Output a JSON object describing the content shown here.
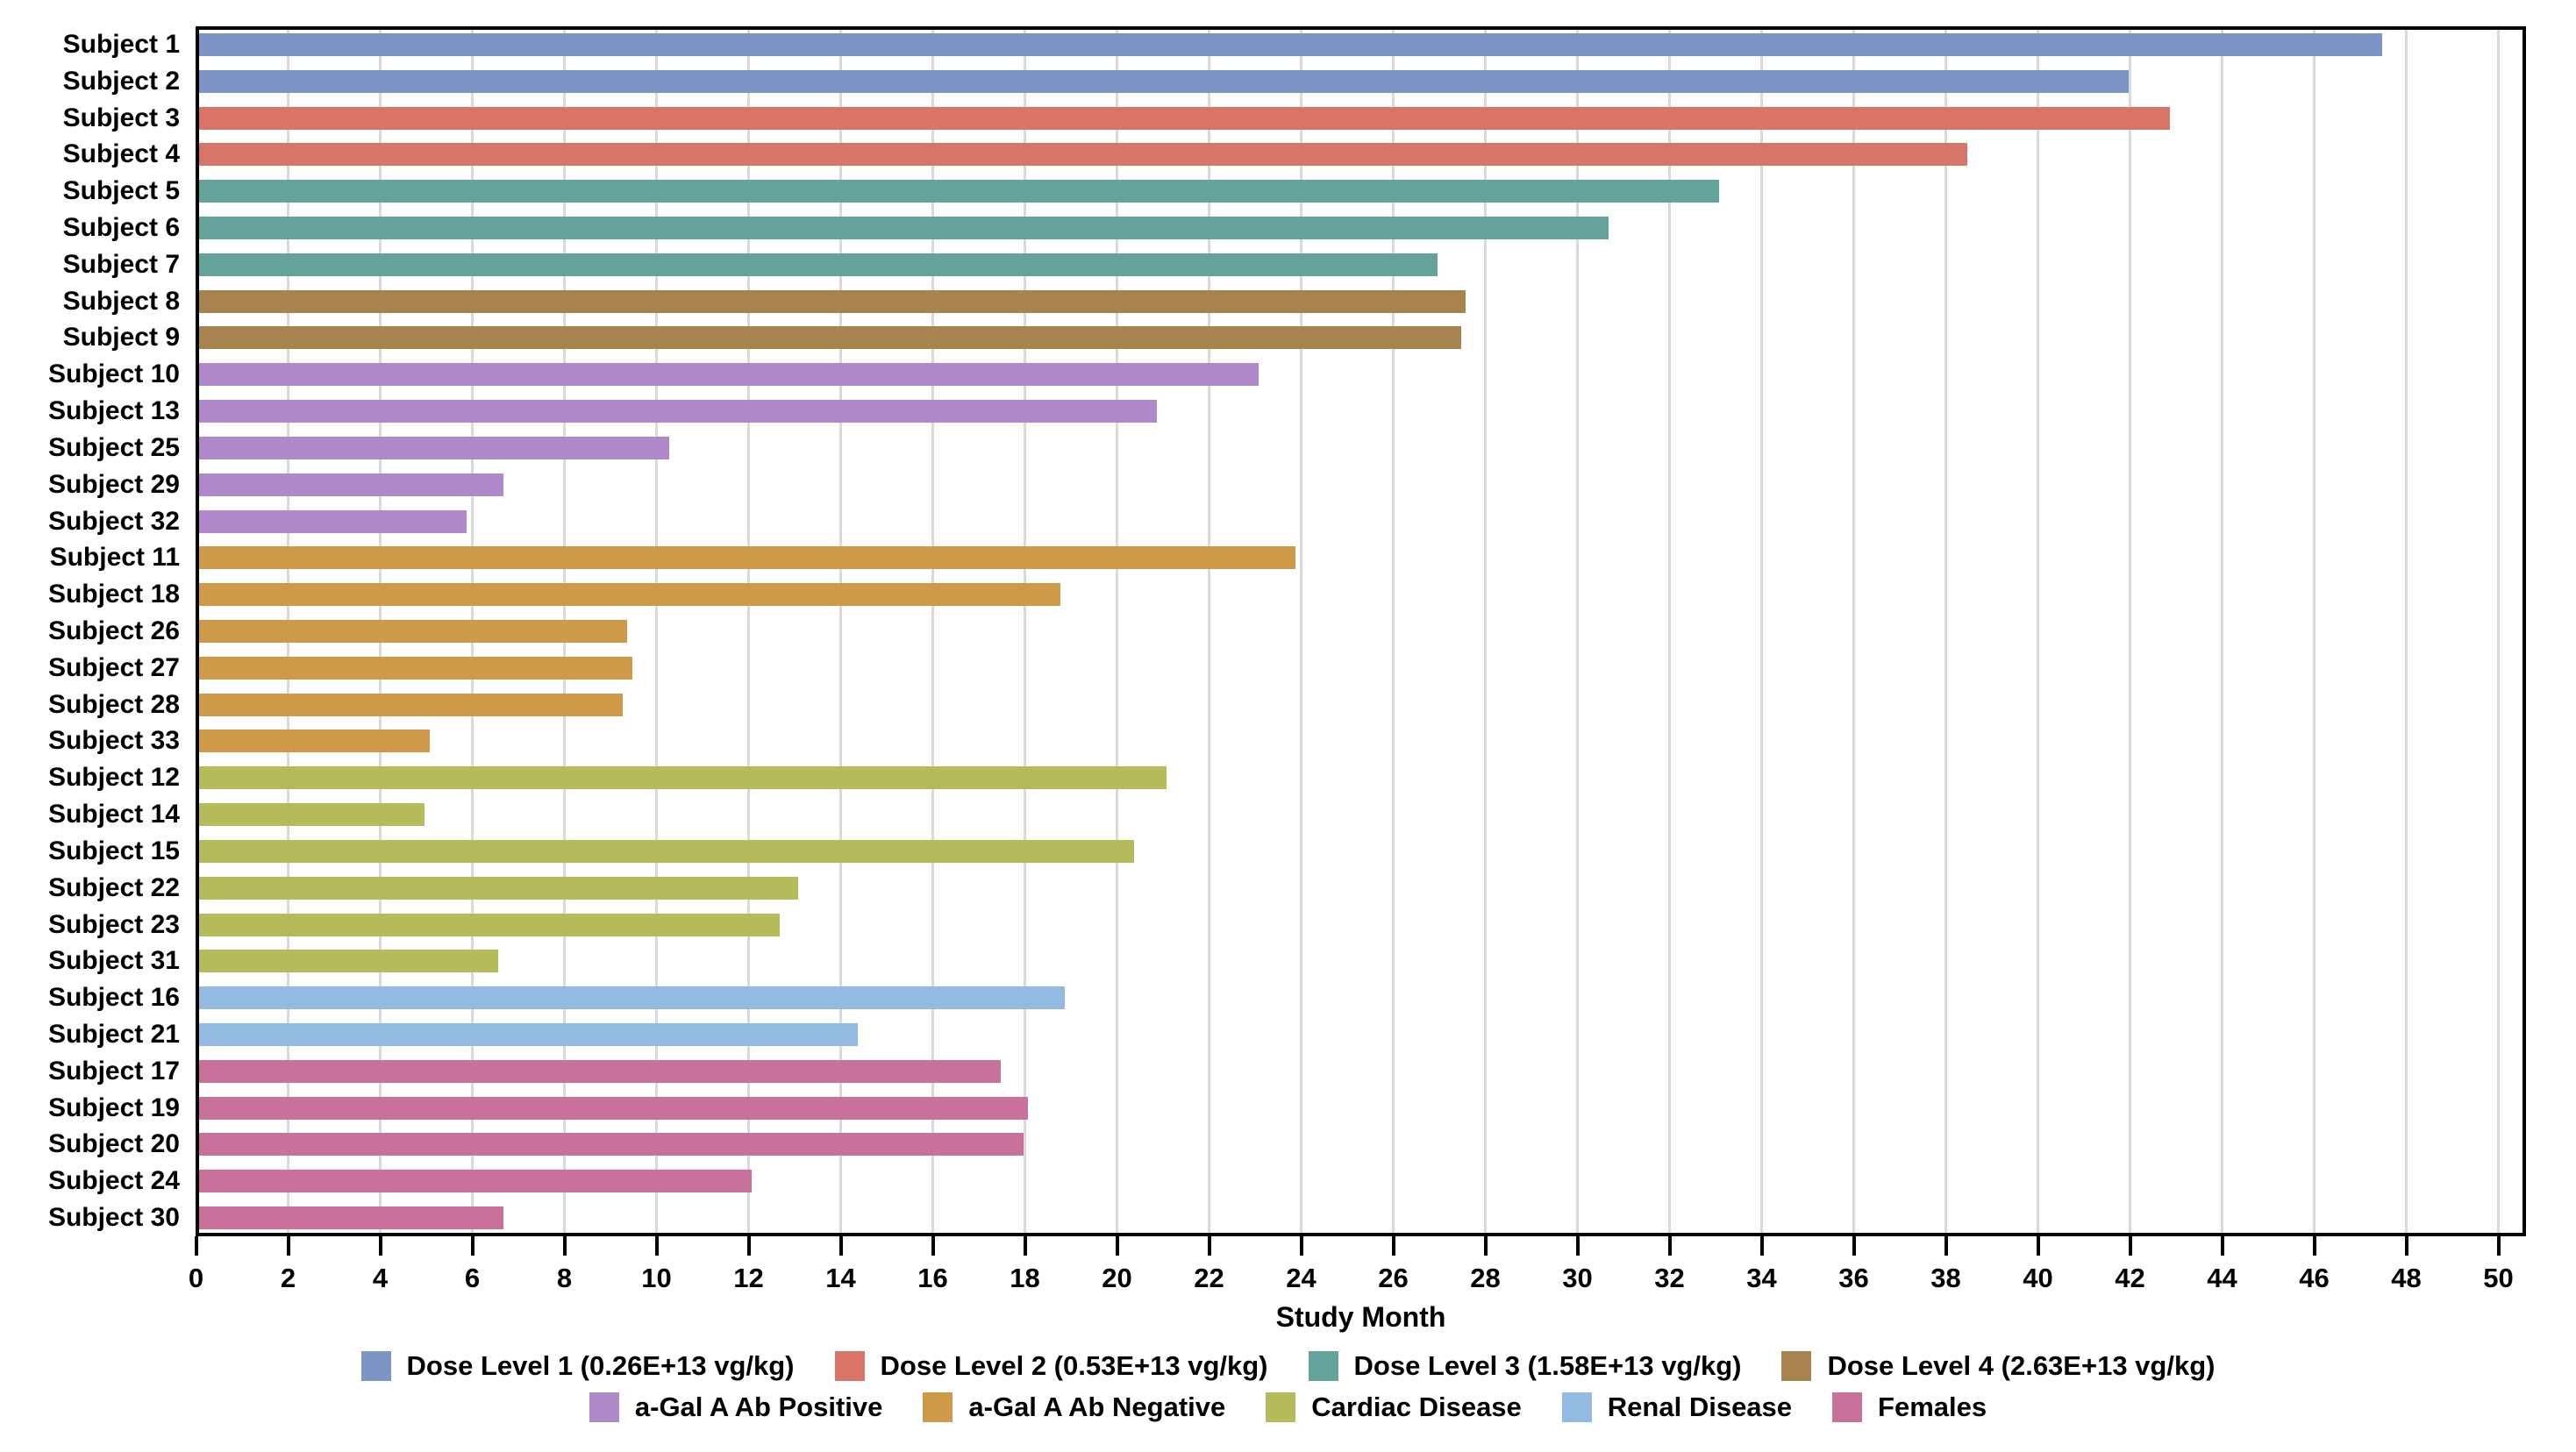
{
  "chart_data": {
    "type": "bar",
    "orientation": "horizontal",
    "xlabel": "Study Month",
    "x_axis": {
      "min": 0,
      "max": 50.6,
      "tick_step": 2,
      "tick_max": 50,
      "grid": true
    },
    "groups": {
      "dose1": {
        "label": "Dose Level 1 (0.26E+13 vg/kg)",
        "color": "#7d95c5"
      },
      "dose2": {
        "label": "Dose Level 2 (0.53E+13 vg/kg)",
        "color": "#d97568"
      },
      "dose3": {
        "label": "Dose Level 3 (1.58E+13 vg/kg)",
        "color": "#64a39c"
      },
      "dose4": {
        "label": "Dose Level 4 (2.63E+13 vg/kg)",
        "color": "#a9834f"
      },
      "abpos": {
        "label": "a-Gal A Ab Positive",
        "color": "#af89c9"
      },
      "abneg": {
        "label": "a-Gal A Ab Negative",
        "color": "#cf9a48"
      },
      "cardiac": {
        "label": "Cardiac Disease",
        "color": "#b5bb58"
      },
      "renal": {
        "label": "Renal Disease",
        "color": "#93bae1"
      },
      "females": {
        "label": "Females",
        "color": "#c8719a"
      }
    },
    "legend_rows": [
      [
        "dose1",
        "dose2",
        "dose3",
        "dose4"
      ],
      [
        "abpos",
        "abneg",
        "cardiac",
        "renal",
        "females"
      ]
    ],
    "bars": [
      {
        "subject": "Subject 1",
        "group": "dose1",
        "value": 47.4
      },
      {
        "subject": "Subject 2",
        "group": "dose1",
        "value": 41.9
      },
      {
        "subject": "Subject 3",
        "group": "dose2",
        "value": 42.8
      },
      {
        "subject": "Subject 4",
        "group": "dose2",
        "value": 38.4
      },
      {
        "subject": "Subject 5",
        "group": "dose3",
        "value": 33.0
      },
      {
        "subject": "Subject 6",
        "group": "dose3",
        "value": 30.6
      },
      {
        "subject": "Subject 7",
        "group": "dose3",
        "value": 26.9
      },
      {
        "subject": "Subject 8",
        "group": "dose4",
        "value": 27.5
      },
      {
        "subject": "Subject 9",
        "group": "dose4",
        "value": 27.4
      },
      {
        "subject": "Subject 10",
        "group": "abpos",
        "value": 23.0
      },
      {
        "subject": "Subject 13",
        "group": "abpos",
        "value": 20.8
      },
      {
        "subject": "Subject 25",
        "group": "abpos",
        "value": 10.2
      },
      {
        "subject": "Subject 29",
        "group": "abpos",
        "value": 6.6
      },
      {
        "subject": "Subject 32",
        "group": "abpos",
        "value": 5.8
      },
      {
        "subject": "Subject 11",
        "group": "abneg",
        "value": 23.8
      },
      {
        "subject": "Subject 18",
        "group": "abneg",
        "value": 18.7
      },
      {
        "subject": "Subject 26",
        "group": "abneg",
        "value": 9.3
      },
      {
        "subject": "Subject 27",
        "group": "abneg",
        "value": 9.4
      },
      {
        "subject": "Subject 28",
        "group": "abneg",
        "value": 9.2
      },
      {
        "subject": "Subject 33",
        "group": "abneg",
        "value": 5.0
      },
      {
        "subject": "Subject 12",
        "group": "cardiac",
        "value": 21.0
      },
      {
        "subject": "Subject 14",
        "group": "cardiac",
        "value": 4.9
      },
      {
        "subject": "Subject 15",
        "group": "cardiac",
        "value": 20.3
      },
      {
        "subject": "Subject 22",
        "group": "cardiac",
        "value": 13.0
      },
      {
        "subject": "Subject 23",
        "group": "cardiac",
        "value": 12.6
      },
      {
        "subject": "Subject 31",
        "group": "cardiac",
        "value": 6.5
      },
      {
        "subject": "Subject 16",
        "group": "renal",
        "value": 18.8
      },
      {
        "subject": "Subject 21",
        "group": "renal",
        "value": 14.3
      },
      {
        "subject": "Subject 17",
        "group": "females",
        "value": 17.4
      },
      {
        "subject": "Subject 19",
        "group": "females",
        "value": 18.0
      },
      {
        "subject": "Subject 20",
        "group": "females",
        "value": 17.9
      },
      {
        "subject": "Subject 24",
        "group": "females",
        "value": 12.0
      },
      {
        "subject": "Subject 30",
        "group": "females",
        "value": 6.6
      }
    ]
  }
}
